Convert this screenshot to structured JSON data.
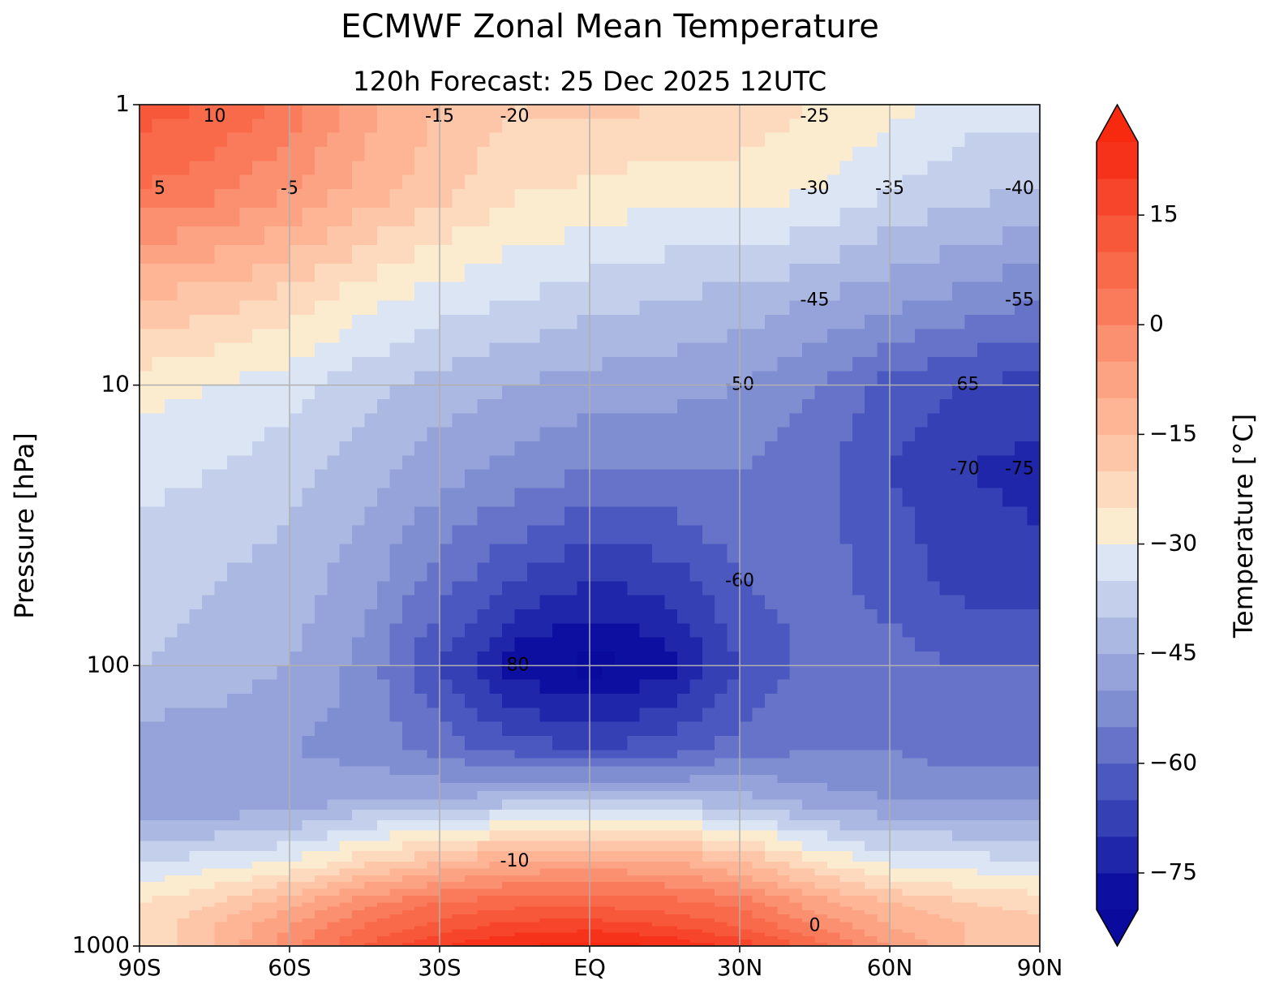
{
  "chart_data": {
    "type": "contourf",
    "title": "ECMWF Zonal Mean Temperature",
    "subtitle": "120h  Forecast:  25 Dec 2025  12UTC",
    "ylabel": "Pressure [hPa]",
    "colorbar_label": "Temperature [°C]",
    "yscale": "log",
    "grid": true,
    "xlim": [
      -90,
      90
    ],
    "ylim": [
      1000,
      1
    ],
    "xticks": [
      {
        "value": -90,
        "label": "90S"
      },
      {
        "value": -60,
        "label": "60S"
      },
      {
        "value": -30,
        "label": "30S"
      },
      {
        "value": 0,
        "label": "EQ"
      },
      {
        "value": 30,
        "label": "30N"
      },
      {
        "value": 60,
        "label": "60N"
      },
      {
        "value": 90,
        "label": "90N"
      }
    ],
    "yticks": [
      1,
      10,
      100,
      1000
    ],
    "x": [
      -90,
      -75,
      -60,
      -45,
      -30,
      -15,
      0,
      15,
      30,
      45,
      60,
      75,
      90
    ],
    "y": [
      1,
      2,
      5,
      10,
      20,
      50,
      100,
      200,
      300,
      500,
      700,
      850,
      1000
    ],
    "z": [
      [
        12,
        10,
        3,
        -8,
        -15,
        -20,
        -18,
        -20,
        -22,
        -25,
        -28,
        -33,
        -33
      ],
      [
        5,
        2,
        -5,
        -12,
        -18,
        -24,
        -26,
        -28,
        -27,
        -30,
        -35,
        -38,
        -40
      ],
      [
        -15,
        -18,
        -22,
        -28,
        -33,
        -35,
        -38,
        -40,
        -42,
        -45,
        -48,
        -52,
        -55
      ],
      [
        -28,
        -30,
        -33,
        -38,
        -42,
        -45,
        -47,
        -48,
        -50,
        -55,
        -62,
        -65,
        -67
      ],
      [
        -33,
        -35,
        -38,
        -43,
        -48,
        -52,
        -55,
        -55,
        -55,
        -58,
        -65,
        -70,
        -72
      ],
      [
        -38,
        -40,
        -42,
        -48,
        -58,
        -65,
        -70,
        -68,
        -60,
        -58,
        -62,
        -67,
        -68
      ],
      [
        -40,
        -42,
        -45,
        -52,
        -65,
        -78,
        -82,
        -78,
        -65,
        -58,
        -58,
        -60,
        -60
      ],
      [
        -48,
        -48,
        -50,
        -52,
        -57,
        -62,
        -65,
        -62,
        -58,
        -55,
        -55,
        -58,
        -58
      ],
      [
        -50,
        -50,
        -48,
        -45,
        -45,
        -42,
        -40,
        -42,
        -43,
        -48,
        -50,
        -50,
        -50
      ],
      [
        -35,
        -33,
        -30,
        -22,
        -15,
        -10,
        -8,
        -10,
        -15,
        -25,
        -32,
        -33,
        -35
      ],
      [
        -25,
        -20,
        -12,
        -2,
        5,
        8,
        8,
        7,
        3,
        -8,
        -15,
        -20,
        -22
      ],
      [
        -25,
        -15,
        -5,
        5,
        12,
        17,
        18,
        15,
        10,
        0,
        -10,
        -15,
        -18
      ],
      [
        -25,
        -15,
        -2,
        10,
        20,
        25,
        27,
        25,
        18,
        8,
        -5,
        -15,
        -18
      ]
    ],
    "levels": [
      -80,
      -75,
      -70,
      -65,
      -60,
      -55,
      -50,
      -45,
      -40,
      -35,
      -30,
      -25,
      -20,
      -15,
      -10,
      -5,
      0,
      5,
      10,
      15,
      20,
      25
    ],
    "colors": [
      "#0a0a9c",
      "#0d0fa0",
      "#2026a9",
      "#3540b5",
      "#4b58c0",
      "#6673c8",
      "#7f8dd1",
      "#95a3da",
      "#abb8e2",
      "#c4cfeb",
      "#dbe5f4",
      "#fbeccf",
      "#fdd9bd",
      "#fdc6a8",
      "#fdb595",
      "#fca383",
      "#fb9070",
      "#fa7b5c",
      "#f96a4a",
      "#f8583a",
      "#f7452b",
      "#f7321a",
      "#f72a10"
    ],
    "colorbar_ticks": [
      15,
      0,
      {
        "value": -15,
        "label": "−15"
      },
      {
        "value": -30,
        "label": "−30"
      },
      {
        "value": -45,
        "label": "−45"
      },
      {
        "value": -60,
        "label": "−60"
      },
      {
        "value": -75,
        "label": "−75"
      }
    ],
    "contour_labels": [
      10,
      5,
      0,
      -5,
      -10,
      -15,
      -20,
      -25,
      -30,
      -35,
      -40,
      -45,
      -50,
      -55,
      -60,
      -65,
      -70,
      -75,
      -80
    ]
  }
}
